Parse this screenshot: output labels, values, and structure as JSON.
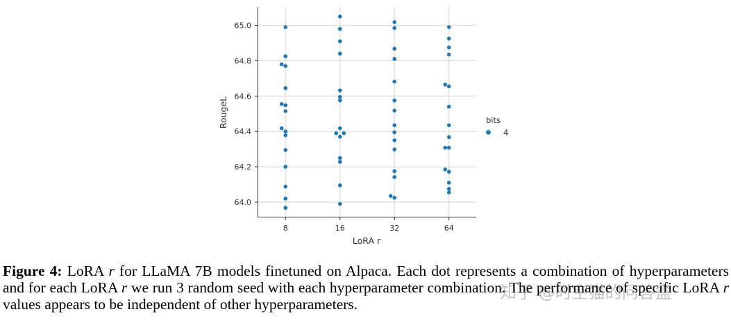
{
  "chart_data": {
    "type": "scatter",
    "xlabel": "LoRA r",
    "ylabel": "RougeL",
    "categories": [
      "8",
      "16",
      "32",
      "64"
    ],
    "yticks": [
      "64.0",
      "64.2",
      "64.4",
      "64.6",
      "64.8",
      "65.0"
    ],
    "ylim": [
      63.93,
      65.1
    ],
    "grid": true,
    "legend": {
      "title": "bits",
      "placement": "right",
      "entries": [
        {
          "label": "4",
          "color": "#1f77b4"
        }
      ]
    },
    "series": [
      {
        "name": "4",
        "color": "#1f77b4",
        "points": [
          {
            "x": "8",
            "y": 64.99,
            "j": 0
          },
          {
            "x": "8",
            "y": 64.825,
            "j": 0
          },
          {
            "x": "8",
            "y": 64.78,
            "j": -1
          },
          {
            "x": "8",
            "y": 64.77,
            "j": 0
          },
          {
            "x": "8",
            "y": 64.645,
            "j": 0
          },
          {
            "x": "8",
            "y": 64.555,
            "j": -1
          },
          {
            "x": "8",
            "y": 64.548,
            "j": 0
          },
          {
            "x": "8",
            "y": 64.515,
            "j": 0
          },
          {
            "x": "8",
            "y": 64.418,
            "j": -1
          },
          {
            "x": "8",
            "y": 64.4,
            "j": 0
          },
          {
            "x": "8",
            "y": 64.378,
            "j": 0
          },
          {
            "x": "8",
            "y": 64.295,
            "j": 0
          },
          {
            "x": "8",
            "y": 64.2,
            "j": 0
          },
          {
            "x": "8",
            "y": 64.088,
            "j": 0
          },
          {
            "x": "8",
            "y": 64.02,
            "j": 0
          },
          {
            "x": "8",
            "y": 63.968,
            "j": 0
          },
          {
            "x": "16",
            "y": 65.05,
            "j": 0
          },
          {
            "x": "16",
            "y": 64.98,
            "j": 0
          },
          {
            "x": "16",
            "y": 64.91,
            "j": 0
          },
          {
            "x": "16",
            "y": 64.84,
            "j": 0
          },
          {
            "x": "16",
            "y": 64.632,
            "j": 0
          },
          {
            "x": "16",
            "y": 64.595,
            "j": 0
          },
          {
            "x": "16",
            "y": 64.575,
            "j": 0
          },
          {
            "x": "16",
            "y": 64.418,
            "j": 0
          },
          {
            "x": "16",
            "y": 64.39,
            "j": -1
          },
          {
            "x": "16",
            "y": 64.39,
            "j": 1
          },
          {
            "x": "16",
            "y": 64.37,
            "j": 0
          },
          {
            "x": "16",
            "y": 64.25,
            "j": 0
          },
          {
            "x": "16",
            "y": 64.228,
            "j": 0
          },
          {
            "x": "16",
            "y": 64.095,
            "j": 0
          },
          {
            "x": "16",
            "y": 63.99,
            "j": 0
          },
          {
            "x": "32",
            "y": 65.018,
            "j": 0
          },
          {
            "x": "32",
            "y": 64.985,
            "j": 0
          },
          {
            "x": "32",
            "y": 64.868,
            "j": 0
          },
          {
            "x": "32",
            "y": 64.81,
            "j": 0
          },
          {
            "x": "32",
            "y": 64.682,
            "j": 0
          },
          {
            "x": "32",
            "y": 64.575,
            "j": 0
          },
          {
            "x": "32",
            "y": 64.518,
            "j": 0
          },
          {
            "x": "32",
            "y": 64.435,
            "j": 0
          },
          {
            "x": "32",
            "y": 64.395,
            "j": 0
          },
          {
            "x": "32",
            "y": 64.35,
            "j": 0
          },
          {
            "x": "32",
            "y": 64.298,
            "j": 0
          },
          {
            "x": "32",
            "y": 64.175,
            "j": 0
          },
          {
            "x": "32",
            "y": 64.142,
            "j": 0
          },
          {
            "x": "32",
            "y": 64.035,
            "j": -1
          },
          {
            "x": "32",
            "y": 64.025,
            "j": 0
          },
          {
            "x": "64",
            "y": 64.99,
            "j": 0
          },
          {
            "x": "64",
            "y": 64.925,
            "j": 0
          },
          {
            "x": "64",
            "y": 64.875,
            "j": 0
          },
          {
            "x": "64",
            "y": 64.835,
            "j": 0
          },
          {
            "x": "64",
            "y": 64.665,
            "j": -1
          },
          {
            "x": "64",
            "y": 64.655,
            "j": 0
          },
          {
            "x": "64",
            "y": 64.54,
            "j": 0
          },
          {
            "x": "64",
            "y": 64.435,
            "j": 0
          },
          {
            "x": "64",
            "y": 64.368,
            "j": 0
          },
          {
            "x": "64",
            "y": 64.308,
            "j": -1
          },
          {
            "x": "64",
            "y": 64.308,
            "j": 0
          },
          {
            "x": "64",
            "y": 64.185,
            "j": -1
          },
          {
            "x": "64",
            "y": 64.172,
            "j": 0
          },
          {
            "x": "64",
            "y": 64.11,
            "j": 0
          },
          {
            "x": "64",
            "y": 64.075,
            "j": 0
          },
          {
            "x": "64",
            "y": 64.055,
            "j": 0
          }
        ]
      }
    ]
  },
  "caption": {
    "label": "Figure 4:",
    "text_1": " LoRA ",
    "var_1": "r",
    "text_2": " for LLaMA 7B models finetuned on Alpaca.  Each dot represents a combination of hyperparameters and for each LoRA ",
    "var_2": "r",
    "text_3": " we run 3 random seed with each hyperparameter combination. The performance of specific LoRA ",
    "var_3": "r",
    "text_4": " values appears to be independent of other hyperparameters."
  },
  "watermark": "知乎 @时空猫的问答盒"
}
